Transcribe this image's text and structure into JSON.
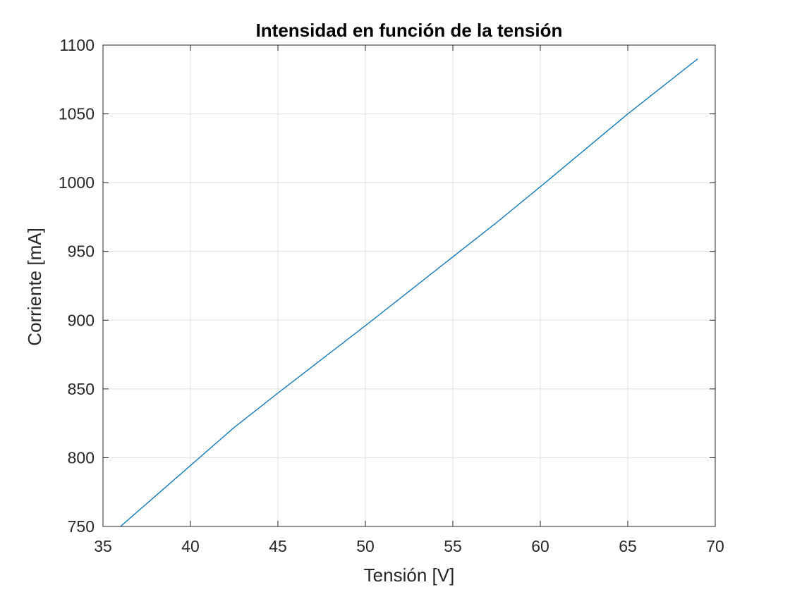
{
  "chart_data": {
    "type": "line",
    "title": "Intensidad en función de la tensión",
    "xlabel": "Tensión [V]",
    "ylabel": "Corriente [mA]",
    "xlim": [
      35,
      70
    ],
    "ylim": [
      750,
      1100
    ],
    "xticks": [
      35,
      40,
      45,
      50,
      55,
      60,
      65,
      70
    ],
    "yticks": [
      750,
      800,
      850,
      900,
      950,
      1000,
      1050,
      1100
    ],
    "xtick_labels": [
      "35",
      "40",
      "45",
      "50",
      "55",
      "60",
      "65",
      "70"
    ],
    "ytick_labels": [
      "750",
      "800",
      "850",
      "900",
      "950",
      "1000",
      "1050",
      "1100"
    ],
    "grid": true,
    "series": [
      {
        "color": "#0072BD",
        "x": [
          36,
          42.5,
          45,
          50,
          57.5,
          60,
          65,
          69
        ],
        "y": [
          750,
          822,
          847,
          896,
          971,
          997,
          1050,
          1090
        ]
      }
    ]
  }
}
